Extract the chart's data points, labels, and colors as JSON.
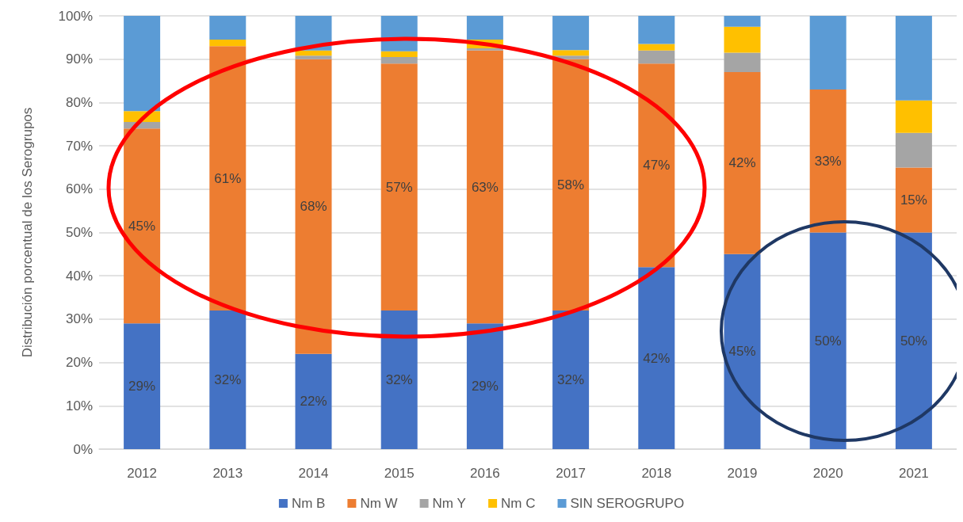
{
  "chart_data": {
    "type": "bar",
    "stacked": true,
    "ylabel": "Distribución porcentual de los Serogrupos",
    "categories": [
      "2012",
      "2013",
      "2014",
      "2015",
      "2016",
      "2017",
      "2018",
      "2019",
      "2020",
      "2021"
    ],
    "series": [
      {
        "name": "Nm B",
        "color": "#4472c4",
        "values": [
          29,
          32,
          22,
          32,
          29,
          32,
          42,
          45,
          50,
          50
        ],
        "value_labels": [
          "29%",
          "32%",
          "22%",
          "32%",
          "29%",
          "32%",
          "42%",
          "45%",
          "50%",
          "50%"
        ]
      },
      {
        "name": "Nm W",
        "color": "#ed7d31",
        "values": [
          45,
          61,
          68,
          57,
          63,
          58,
          47,
          42,
          33,
          15
        ],
        "value_labels": [
          "45%",
          "61%",
          "68%",
          "57%",
          "63%",
          "58%",
          "47%",
          "42%",
          "33%",
          "15%"
        ]
      },
      {
        "name": "Nm Y",
        "color": "#a5a5a5",
        "values": [
          1.5,
          0,
          0.8,
          1.5,
          0.5,
          0.8,
          3,
          4.5,
          0,
          8
        ]
      },
      {
        "name": "Nm C",
        "color": "#ffc000",
        "values": [
          2.5,
          1.5,
          1.2,
          1.3,
          2,
          1.3,
          1.5,
          6,
          0,
          7.5
        ]
      },
      {
        "name": "SIN SEROGRUPO",
        "color": "#5b9bd5",
        "values": [
          22,
          5.5,
          8,
          8.2,
          5.5,
          7.9,
          6.5,
          2.5,
          17,
          19.5
        ]
      }
    ],
    "ylim": [
      0,
      100
    ],
    "yticks": [
      {
        "value": 0,
        "label": "0%"
      },
      {
        "value": 10,
        "label": "10%"
      },
      {
        "value": 20,
        "label": "20%"
      },
      {
        "value": 30,
        "label": "30%"
      },
      {
        "value": 40,
        "label": "40%"
      },
      {
        "value": 50,
        "label": "50%"
      },
      {
        "value": 60,
        "label": "60%"
      },
      {
        "value": 70,
        "label": "70%"
      },
      {
        "value": 80,
        "label": "80%"
      },
      {
        "value": 90,
        "label": "90%"
      },
      {
        "value": 100,
        "label": "100%"
      }
    ],
    "grid": "y",
    "legend": "bottom"
  }
}
